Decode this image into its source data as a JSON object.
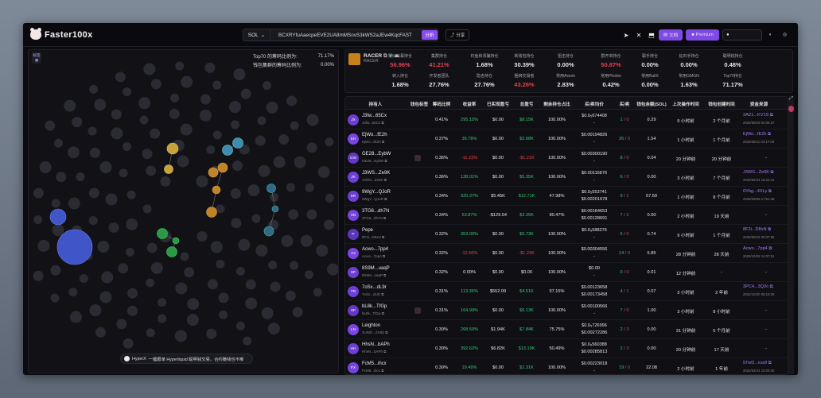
{
  "app": {
    "title": "Faster100x"
  },
  "search": {
    "chain": "SOL",
    "address": "BCXRYfuAaecpeEVE2UA8mMSnvS3kWS2aJEw4KqcFAST",
    "analyze_label": "分析",
    "share_label": "分享"
  },
  "header": {
    "docs_label": "文档",
    "premium_label": "Premium"
  },
  "bubblemap": {
    "label_top": "标签",
    "top70_label": "Top70 的筹码比例为:",
    "top70_value": "71.17%",
    "cluster_label": "钱包集群的筹码比例为:",
    "cluster_value": "0.00%",
    "hyper_label": "HyperX",
    "hyper_text": "一键跟单 Hyperliquid 聪明钱交易，合约赚钱也不难"
  },
  "token": {
    "name": "RACER",
    "symbol": "RACER",
    "stats": [
      {
        "k": "疑似内幕持仓",
        "v": "56.96%",
        "c": "r"
      },
      {
        "k": "集群持仓",
        "v": "41.21%",
        "c": "r"
      },
      {
        "k": "钓鱼和诱骗持仓",
        "v": "1.68%",
        "c": "w"
      },
      {
        "k": "新钱包持仓",
        "v": "30.39%",
        "c": "w"
      },
      {
        "k": "狙击持仓",
        "v": "0.00%",
        "c": "w"
      },
      {
        "k": "群开单持仓",
        "v": "50.87%",
        "c": "r"
      },
      {
        "k": "聪手持仓",
        "v": "0.00%",
        "c": "w"
      },
      {
        "k": "钻石手持仓",
        "v": "0.00%",
        "c": "w"
      },
      {
        "k": "聪明钱持仓",
        "v": "0.48%",
        "c": "w"
      },
      {
        "k": "转入持仓",
        "v": "1.68%",
        "c": "w"
      },
      {
        "k": "开发者团队",
        "v": "27.76%",
        "c": "w"
      },
      {
        "k": "隐含持仓",
        "v": "27.76%",
        "c": "w"
      },
      {
        "k": "捆绑交易者",
        "v": "43.26%",
        "c": "r"
      },
      {
        "k": "常用Axiom",
        "v": "2.83%",
        "c": "w"
      },
      {
        "k": "常用Photon",
        "v": "0.42%",
        "c": "w"
      },
      {
        "k": "常用BullX",
        "v": "0.00%",
        "c": "w"
      },
      {
        "k": "常用GMGN",
        "v": "1.63%",
        "c": "w"
      },
      {
        "k": "Top70持仓",
        "v": "71.17%",
        "c": "w"
      }
    ]
  },
  "table": {
    "headers": [
      "持有人",
      "钱包标签",
      "筹码比例",
      "收益率",
      "已实现盈亏",
      "总盈亏",
      "剩余持仓占比",
      "买/卖均价",
      "买/卖",
      "钱包余额(SOL)",
      "上次操作时间",
      "钱包创建时间",
      "资金来源"
    ],
    "rows": [
      {
        "av": "JX",
        "name": "J3fw...65Cx",
        "sub": "J3fw...65Cx",
        "tag": false,
        "pct": "0.41%",
        "roi": "295.15%",
        "roic": "g",
        "real": "$0.00",
        "realc": "w",
        "total": "$8.15K",
        "totalc": "g",
        "remain": "100.00%",
        "avg1": "$0.0₅674408",
        "avg2": "-",
        "buy": "1",
        "sell": "0",
        "bal": "0.29",
        "last": "9 小时前",
        "created": "2 个月前",
        "src": "2AZ1...KV1S",
        "srcdate": "2025/05/19 04:09:27"
      },
      {
        "av": "EH",
        "name": "EjWo...fE2h",
        "sub": "EjWo...fE2h",
        "tag": false,
        "pct": "0.37%",
        "roi": "36.78%",
        "roic": "g",
        "real": "$0.00",
        "realc": "w",
        "total": "$2.68K",
        "totalc": "g",
        "remain": "100.00%",
        "avg1": "$0.00194826",
        "avg2": "-",
        "buy": "26",
        "sell": "0",
        "bal": "1.54",
        "last": "1 小时前",
        "created": "1 个月前",
        "src": "EjWo...fE2h",
        "srcdate": "2025/06/11 04:17:06"
      },
      {
        "av": "GW",
        "name": "GE28...EybW",
        "sub": "GE28...EybW",
        "tag": true,
        "pct": "0.36%",
        "roi": "-11.23%",
        "roic": "r",
        "real": "$0.00",
        "realc": "w",
        "total": "-$1.21K",
        "totalc": "r",
        "remain": "100.00%",
        "avg1": "$0.00300190",
        "avg2": "-",
        "buy": "8",
        "sell": "0",
        "bal": "0.04",
        "last": "20 分钟前",
        "created": "20 分钟前",
        "src": "",
        "srcdate": ""
      },
      {
        "av": "JK",
        "name": "J3WS...Ze9K",
        "sub": "J3WS...Ze9K",
        "tag": false,
        "pct": "0.36%",
        "roi": "128.01%",
        "roic": "g",
        "real": "$0.00",
        "realc": "w",
        "total": "$5.35K",
        "totalc": "g",
        "remain": "100.00%",
        "avg1": "$0.00116876",
        "avg2": "-",
        "buy": "6",
        "sell": "0",
        "bal": "0.00",
        "last": "3 小时前",
        "created": "7 个月前",
        "src": "J3WS...Ze9K",
        "srcdate": "2025/06/24 19:23:41"
      },
      {
        "av": "9R",
        "name": "9WgY...QJoR",
        "sub": "9WgY...QJoR",
        "tag": false,
        "pct": "0.34%",
        "roi": "320.37%",
        "roic": "g",
        "real": "$5.45K",
        "realc": "w",
        "total": "$12.71K",
        "totalc": "g",
        "remain": "47.98%",
        "avg1": "$0.0₅553741",
        "avg2": "$0.00201678",
        "buy": "9",
        "sell": "1",
        "bal": "57.69",
        "last": "1 小时前",
        "created": "8 个月前",
        "src": "6Ybg...4XLy",
        "srcdate": "2025/03/28 17:51:48"
      },
      {
        "av": "3N",
        "name": "3TG6...dh7N",
        "sub": "3TG6...dh7N",
        "tag": false,
        "pct": "0.34%",
        "roi": "53.87%",
        "roic": "g",
        "real": "-$129.54",
        "realc": "w",
        "total": "$3.35K",
        "totalc": "g",
        "remain": "90.47%",
        "avg1": "$0.00164653",
        "avg2": "$0.00128691",
        "buy": "7",
        "sell": "2",
        "bal": "0.00",
        "last": "2 小时前",
        "created": "19 天前",
        "src": "",
        "srcdate": ""
      },
      {
        "av": "P",
        "name": "Pepe",
        "sub": "8F2i...D8xN",
        "tag": false,
        "pct": "0.32%",
        "roi": "353.00%",
        "roic": "g",
        "real": "$0.00",
        "realc": "w",
        "total": "$6.73K",
        "totalc": "g",
        "remain": "100.00%",
        "avg1": "$0.0₅588276",
        "avg2": "-",
        "buy": "6",
        "sell": "0",
        "bal": "0.74",
        "last": "9 小时前",
        "created": "1 个月前",
        "src": "8F2i...D8xN",
        "srcdate": "2025/06/15 00:37:56"
      },
      {
        "av": "A4",
        "name": "Acwo...7pp4",
        "sub": "Acwo...7pp4",
        "tag": false,
        "pct": "0.32%",
        "roi": "-12.50%",
        "roic": "r",
        "real": "$0.00",
        "realc": "w",
        "total": "-$1.23K",
        "totalc": "r",
        "remain": "100.00%",
        "avg1": "$0.00304556",
        "avg2": "-",
        "buy": "14",
        "sell": "0",
        "bal": "5.85",
        "last": "28 分钟前",
        "created": "28 天前",
        "src": "Acwo...7pp4",
        "srcdate": "2025/10/28 14:07:51"
      },
      {
        "av": "8P",
        "name": "8S9M...uaqP",
        "sub": "8S9M...uaqP",
        "tag": false,
        "pct": "0.32%",
        "roi": "0.00%",
        "roic": "w",
        "real": "$0.00",
        "realc": "w",
        "total": "$0.00",
        "totalc": "w",
        "remain": "100.00%",
        "avg1": "$0.00",
        "avg2": "-",
        "buy": "0",
        "sell": "0",
        "bal": "0.01",
        "last": "12 分钟前",
        "created": "-",
        "src": "",
        "srcdate": ""
      },
      {
        "av": "7R",
        "name": "7oSx...dL9r",
        "sub": "7oSx...dL9r",
        "tag": false,
        "pct": "0.31%",
        "roi": "113.36%",
        "roic": "g",
        "real": "$552.09",
        "realc": "w",
        "total": "$4.51K",
        "totalc": "g",
        "remain": "97.15%",
        "avg1": "$0.00123658",
        "avg2": "$0.00173458",
        "buy": "4",
        "sell": "1",
        "bal": "0.07",
        "last": "3 小时前",
        "created": "2 年前",
        "src": "3PC4...3Q2c",
        "srcdate": "2024/10/20 08:15:29"
      },
      {
        "av": "8P",
        "name": "bL8k...TfGp",
        "sub": "bL8k...TfGp",
        "tag": true,
        "pct": "0.31%",
        "roi": "164.99%",
        "roic": "g",
        "real": "$0.00",
        "realc": "w",
        "total": "$5.13K",
        "totalc": "g",
        "remain": "100.00%",
        "avg1": "$0.00100566",
        "avg2": "-",
        "buy": "7",
        "sell": "0",
        "bal": "1.00",
        "last": "3 小时前",
        "created": "8 小时前",
        "src": "",
        "srcdate": ""
      },
      {
        "av": "LN",
        "name": "Leighton",
        "sub": "2UWD...ZH8b",
        "tag": false,
        "pct": "0.30%",
        "roi": "268.50%",
        "roic": "g",
        "real": "$1.94K",
        "realc": "w",
        "total": "$7.84K",
        "totalc": "g",
        "remain": "75.75%",
        "avg1": "$0.0₅726996",
        "avg2": "$0.00272286",
        "buy": "2",
        "sell": "3",
        "bal": "0.00",
        "last": "31 分钟前",
        "created": "5 个月前",
        "src": "",
        "srcdate": ""
      },
      {
        "av": "HH",
        "name": "HhsN...bAPh",
        "sub": "HhsN...bAPh",
        "tag": false,
        "pct": "0.30%",
        "roi": "392.62%",
        "roic": "g",
        "real": "$6.82K",
        "realc": "w",
        "total": "$13.19K",
        "totalc": "g",
        "remain": "50.49%",
        "avg1": "$0.0₅560388",
        "avg2": "$0.00285813",
        "buy": "2",
        "sell": "3",
        "bal": "0.00",
        "last": "20 分钟前",
        "created": "17 天前",
        "src": "",
        "srcdate": ""
      },
      {
        "av": "FX",
        "name": "FcM5...ihcx",
        "sub": "FcM5...ihcx",
        "tag": false,
        "pct": "0.30%",
        "roi": "19.49%",
        "roic": "g",
        "real": "$0.00",
        "realc": "w",
        "total": "$1.31K",
        "totalc": "g",
        "remain": "100.00%",
        "avg1": "$0.00223018",
        "avg2": "-",
        "buy": "19",
        "sell": "0",
        "bal": "22.08",
        "last": "2 小时前",
        "created": "1 年前",
        "src": "5TwD...icw9",
        "srcdate": "2024/04/24 13:28:40"
      }
    ]
  }
}
